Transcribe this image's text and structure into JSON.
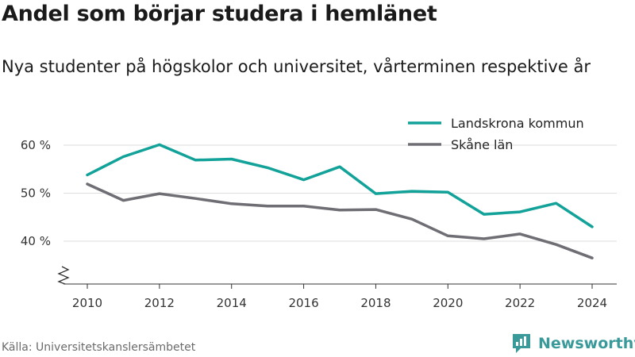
{
  "header": {
    "title": "Andel som börjar studera i hemlänet",
    "subtitle": "Nya studenter på högskolor och universitet, vårterminen respektive år"
  },
  "footer": {
    "source": "Källa: Universitetskanslersämbetet",
    "brand": "Newsworthy",
    "brand_icon": "newsworthy-logo-icon"
  },
  "chart_data": {
    "type": "line",
    "title": "Andel som börjar studera i hemlänet",
    "subtitle": "Nya studenter på högskolor och universitet, vårterminen respektive år",
    "xlabel": "",
    "ylabel": "",
    "x": [
      2010,
      2011,
      2012,
      2013,
      2014,
      2015,
      2016,
      2017,
      2018,
      2019,
      2020,
      2021,
      2022,
      2023,
      2024
    ],
    "x_ticks": [
      2010,
      2012,
      2014,
      2016,
      2018,
      2020,
      2022,
      2024
    ],
    "x_tick_labels": [
      "2010",
      "2012",
      "2014",
      "2016",
      "2018",
      "2020",
      "2022",
      "2024"
    ],
    "y_ticks": [
      40,
      50,
      60
    ],
    "y_tick_labels": [
      "40 %",
      "50 %",
      "60 %"
    ],
    "ylim": [
      31,
      63
    ],
    "xlim": [
      2009.6,
      2024.4
    ],
    "y_axis_break": true,
    "grid": "horizontal",
    "legend_position": "top-right",
    "series": [
      {
        "name": "Landskrona kommun",
        "color": "#12a299",
        "values": [
          53.8,
          57.6,
          60.1,
          56.9,
          57.1,
          55.3,
          52.8,
          55.5,
          49.9,
          50.4,
          50.2,
          45.6,
          46.1,
          47.9,
          43.0
        ]
      },
      {
        "name": "Skåne län",
        "color": "#6e6e74",
        "values": [
          51.9,
          48.5,
          49.9,
          48.9,
          47.8,
          47.3,
          47.3,
          46.5,
          46.6,
          44.6,
          41.1,
          40.5,
          41.5,
          39.3,
          36.5
        ]
      }
    ]
  }
}
